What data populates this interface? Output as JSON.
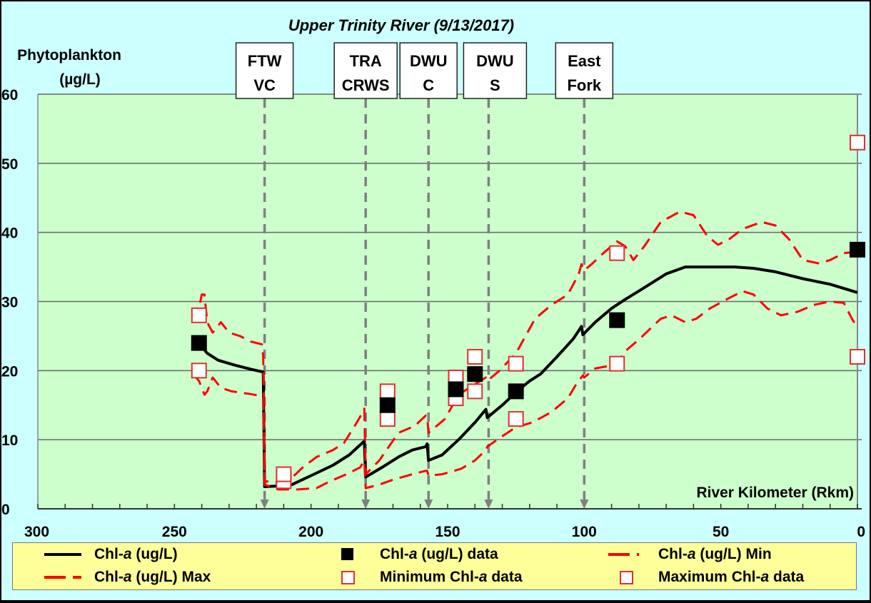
{
  "chart_data": {
    "type": "line",
    "title": "Upper Trinity River (9/13/2017)",
    "ylabel": "Phytoplankton (µg/L)",
    "xlabel": "River Kilometer (Rkm)",
    "xlim": [
      300,
      0
    ],
    "ylim": [
      0,
      60
    ],
    "x_ticks": [
      300,
      250,
      200,
      150,
      100,
      50,
      0
    ],
    "y_ticks": [
      0,
      10,
      20,
      30,
      40,
      50,
      60
    ],
    "grid": "horizontal",
    "legend_position": "bottom",
    "colors": {
      "plot_bg": "#ccffcc",
      "outer_bg": "#ccffff",
      "legend_bg": "#ffff99",
      "model_line": "#000000",
      "minmax_line": "#ff0000",
      "marker_edge": "#e03030",
      "marker_line": "#808080"
    },
    "markers": [
      {
        "label_line1": "FTW",
        "label_line2": "VC",
        "rkm": 217
      },
      {
        "label_line1": "TRA",
        "label_line2": "CRWS",
        "rkm": 180
      },
      {
        "label_line1": "DWU",
        "label_line2": "C",
        "rkm": 157
      },
      {
        "label_line1": "DWU",
        "label_line2": "S",
        "rkm": 135
      },
      {
        "label_line1": "East",
        "label_line2": "Fork",
        "rkm": 100
      }
    ],
    "series": [
      {
        "name": "Chl-a (ug/L)",
        "style": "solid-black",
        "points": [
          [
            241,
            24
          ],
          [
            238,
            22.5
          ],
          [
            234,
            21.5
          ],
          [
            228,
            20.8
          ],
          [
            222,
            20.2
          ],
          [
            217.5,
            19.8
          ],
          [
            217,
            3.2
          ],
          [
            212,
            3.3
          ],
          [
            207,
            3.5
          ],
          [
            200,
            4.8
          ],
          [
            192,
            6.3
          ],
          [
            186,
            7.8
          ],
          [
            180.5,
            9.8
          ],
          [
            180,
            4.6
          ],
          [
            174,
            6
          ],
          [
            168,
            7.5
          ],
          [
            163,
            8.5
          ],
          [
            158,
            9
          ],
          [
            157.5,
            9.4
          ],
          [
            157,
            7
          ],
          [
            152,
            7.8
          ],
          [
            146,
            10
          ],
          [
            140,
            12.5
          ],
          [
            136,
            14.4
          ],
          [
            135.5,
            13.2
          ],
          [
            130,
            15
          ],
          [
            124,
            17.2
          ],
          [
            120,
            18.5
          ],
          [
            116,
            19.5
          ],
          [
            110,
            22
          ],
          [
            104,
            24.6
          ],
          [
            101,
            26.4
          ],
          [
            100.5,
            25.2
          ],
          [
            96,
            27
          ],
          [
            90,
            29
          ],
          [
            85,
            30.3
          ],
          [
            78,
            32
          ],
          [
            70,
            34
          ],
          [
            63,
            35
          ],
          [
            55,
            35
          ],
          [
            45,
            35
          ],
          [
            38,
            34.8
          ],
          [
            30,
            34.3
          ],
          [
            20,
            33.3
          ],
          [
            10,
            32.5
          ],
          [
            0,
            31.3
          ]
        ]
      },
      {
        "name": "Chl-a (ug/L) Max",
        "style": "dashed-red",
        "points": [
          [
            242,
            27
          ],
          [
            240,
            31
          ],
          [
            239,
            31
          ],
          [
            238,
            27
          ],
          [
            236,
            25.5
          ],
          [
            233,
            27
          ],
          [
            230,
            25.5
          ],
          [
            226,
            25
          ],
          [
            222,
            24.2
          ],
          [
            218,
            23.8
          ],
          [
            217.5,
            22
          ],
          [
            217,
            4
          ],
          [
            212,
            3.8
          ],
          [
            207,
            4.5
          ],
          [
            203,
            6
          ],
          [
            198,
            7.5
          ],
          [
            192,
            8.5
          ],
          [
            188,
            9.5
          ],
          [
            184,
            12
          ],
          [
            181,
            14
          ],
          [
            180.5,
            14.5
          ],
          [
            180,
            5
          ],
          [
            175,
            7
          ],
          [
            168,
            11
          ],
          [
            162,
            12
          ],
          [
            158,
            13.5
          ],
          [
            157.5,
            13.5
          ],
          [
            157,
            11
          ],
          [
            151,
            13
          ],
          [
            146,
            16.5
          ],
          [
            141,
            17.8
          ],
          [
            136,
            19
          ],
          [
            135.5,
            18.5
          ],
          [
            131,
            20
          ],
          [
            125,
            22.5
          ],
          [
            118,
            27.5
          ],
          [
            112,
            29.5
          ],
          [
            106,
            31
          ],
          [
            102,
            34
          ],
          [
            101,
            35.4
          ],
          [
            100,
            34.5
          ],
          [
            97,
            35.5
          ],
          [
            93,
            37
          ],
          [
            88,
            38.7
          ],
          [
            85,
            38
          ],
          [
            82,
            36
          ],
          [
            78,
            38
          ],
          [
            72,
            41.5
          ],
          [
            65,
            43
          ],
          [
            60,
            42.5
          ],
          [
            55,
            39.5
          ],
          [
            51,
            38.2
          ],
          [
            47,
            39
          ],
          [
            42,
            40.5
          ],
          [
            35,
            41.5
          ],
          [
            30,
            41
          ],
          [
            25,
            39
          ],
          [
            20,
            36
          ],
          [
            14,
            35.5
          ],
          [
            10,
            36
          ],
          [
            5,
            37
          ],
          [
            0,
            37.2
          ]
        ]
      },
      {
        "name": "Chl-a (ug/L) Min",
        "style": "dashed-red",
        "points": [
          [
            243,
            19.5
          ],
          [
            241,
            18.5
          ],
          [
            239,
            16.5
          ],
          [
            238,
            17
          ],
          [
            236,
            19
          ],
          [
            233,
            17.5
          ],
          [
            229,
            17
          ],
          [
            222,
            16.6
          ],
          [
            218,
            16.3
          ],
          [
            217.5,
            16.2
          ],
          [
            217,
            3.5
          ],
          [
            212,
            2.8
          ],
          [
            205,
            2.8
          ],
          [
            198,
            3
          ],
          [
            193,
            4
          ],
          [
            187,
            5
          ],
          [
            182,
            6
          ],
          [
            180.5,
            7
          ],
          [
            180,
            3
          ],
          [
            175,
            3.5
          ],
          [
            170,
            4.2
          ],
          [
            163,
            5
          ],
          [
            158,
            5.5
          ],
          [
            157.5,
            5.5
          ],
          [
            157,
            4.8
          ],
          [
            152,
            5
          ],
          [
            145,
            5.8
          ],
          [
            140,
            7
          ],
          [
            136,
            8.5
          ],
          [
            135.5,
            9
          ],
          [
            130,
            10.5
          ],
          [
            125,
            11.8
          ],
          [
            119,
            12.5
          ],
          [
            112,
            14
          ],
          [
            106,
            16
          ],
          [
            103,
            18
          ],
          [
            100.5,
            19.3
          ],
          [
            100,
            19
          ],
          [
            96,
            20.3
          ],
          [
            92,
            20.6
          ],
          [
            88,
            21
          ],
          [
            85,
            22.8
          ],
          [
            80,
            24.5
          ],
          [
            76,
            26
          ],
          [
            72,
            27.5
          ],
          [
            68,
            28
          ],
          [
            63,
            27
          ],
          [
            59,
            27.5
          ],
          [
            54,
            29
          ],
          [
            47,
            30.5
          ],
          [
            42,
            31.5
          ],
          [
            38,
            31
          ],
          [
            33,
            29
          ],
          [
            28,
            28
          ],
          [
            22,
            28.5
          ],
          [
            16,
            29.5
          ],
          [
            10,
            30
          ],
          [
            5,
            29.8
          ],
          [
            2,
            27.5
          ],
          [
            0,
            26.2
          ]
        ]
      },
      {
        "name": "Chl-a (ug/L) data",
        "style": "filled-square-black",
        "points": [
          [
            241,
            24
          ],
          [
            172,
            15
          ],
          [
            147,
            17.3
          ],
          [
            140,
            19.5
          ],
          [
            125,
            17
          ],
          [
            88,
            27.3
          ],
          [
            0,
            37.5
          ]
        ]
      },
      {
        "name": "Minimum Chl-a data",
        "style": "hollow-square-red",
        "points": [
          [
            241,
            20
          ],
          [
            210,
            4
          ],
          [
            172,
            13
          ],
          [
            147,
            16
          ],
          [
            140,
            17
          ],
          [
            125,
            13
          ],
          [
            88,
            21
          ],
          [
            0,
            22
          ]
        ]
      },
      {
        "name": "Maximum Chl-a data",
        "style": "hollow-square-red",
        "points": [
          [
            241,
            28
          ],
          [
            210,
            5
          ],
          [
            172,
            17
          ],
          [
            147,
            19
          ],
          [
            140,
            22
          ],
          [
            125,
            21
          ],
          [
            88,
            37
          ],
          [
            0,
            53
          ]
        ]
      }
    ]
  },
  "chart": {
    "title": "Upper Trinity River (9/13/2017)",
    "ylabel_line1": "Phytoplankton",
    "ylabel_line2": "(µg/L)",
    "xlabel": "River Kilometer (Rkm)"
  },
  "legend": {
    "items": [
      {
        "prefix": "Chl-",
        "italic": "a",
        "suffix": " (ug/L)"
      },
      {
        "prefix": "Chl-",
        "italic": "a",
        "suffix": " (ug/L) data"
      },
      {
        "prefix": "Chl-",
        "italic": "a",
        "suffix": " (ug/L) Min"
      },
      {
        "prefix": "Chl-",
        "italic": "a",
        "suffix": " (ug/L) Max"
      },
      {
        "prefix": "Minimum Chl-",
        "italic": "a",
        "suffix": " data"
      },
      {
        "prefix": "Maximum Chl-",
        "italic": "a",
        "suffix": " data"
      }
    ]
  }
}
